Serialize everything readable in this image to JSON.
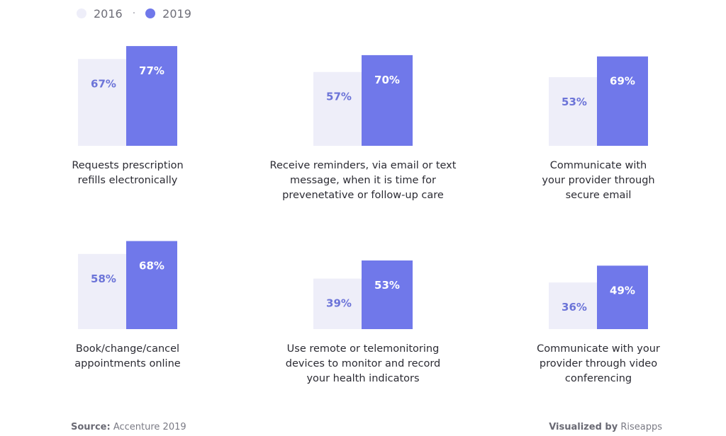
{
  "legend": {
    "items": [
      {
        "label": "2016",
        "color": "#eeeef9"
      },
      {
        "label": "2019",
        "color": "#7078ea"
      }
    ],
    "separator": "·"
  },
  "chart_data": [
    {
      "type": "bar",
      "categories": [
        "2016",
        "2019"
      ],
      "values": [
        67,
        77
      ],
      "value_labels": [
        "67%",
        "77%"
      ],
      "title": "Requests prescription refills electronically",
      "ylim": [
        0,
        100
      ]
    },
    {
      "type": "bar",
      "categories": [
        "2016",
        "2019"
      ],
      "values": [
        57,
        70
      ],
      "value_labels": [
        "57%",
        "70%"
      ],
      "title": "Receive reminders, via email or text message, when it is time for prevenetative or follow-up care",
      "ylim": [
        0,
        100
      ]
    },
    {
      "type": "bar",
      "categories": [
        "2016",
        "2019"
      ],
      "values": [
        53,
        69
      ],
      "value_labels": [
        "53%",
        "69%"
      ],
      "title": "Communicate with your provider through secure email",
      "ylim": [
        0,
        100
      ]
    },
    {
      "type": "bar",
      "categories": [
        "2016",
        "2019"
      ],
      "values": [
        58,
        68
      ],
      "value_labels": [
        "58%",
        "68%"
      ],
      "title": "Book/change/cancel appointments online",
      "ylim": [
        0,
        100
      ]
    },
    {
      "type": "bar",
      "categories": [
        "2016",
        "2019"
      ],
      "values": [
        39,
        53
      ],
      "value_labels": [
        "39%",
        "53%"
      ],
      "title": "Use remote or telemonitoring devices to monitor and record your health indicators",
      "ylim": [
        0,
        100
      ]
    },
    {
      "type": "bar",
      "categories": [
        "2016",
        "2019"
      ],
      "values": [
        36,
        49
      ],
      "value_labels": [
        "36%",
        "49%"
      ],
      "title": "Communicate with your provider through video conferencing",
      "ylim": [
        0,
        100
      ]
    }
  ],
  "captions": [
    [
      "Requests prescription",
      "refills electronically"
    ],
    [
      "Receive reminders, via email or text",
      "message, when it is time for",
      "prevenetative or follow-up care"
    ],
    [
      "Communicate with",
      "your provider through",
      "secure email"
    ],
    [
      "Book/change/cancel",
      "appointments online"
    ],
    [
      "Use remote or telemonitoring",
      "devices to monitor and record",
      "your health indicators"
    ],
    [
      "Communicate with your",
      "provider through video",
      "conferencing"
    ]
  ],
  "footer": {
    "source_label": "Source:",
    "source_value": "Accenture 2019",
    "credit_label": "Visualized by",
    "credit_value": "Riseapps"
  }
}
